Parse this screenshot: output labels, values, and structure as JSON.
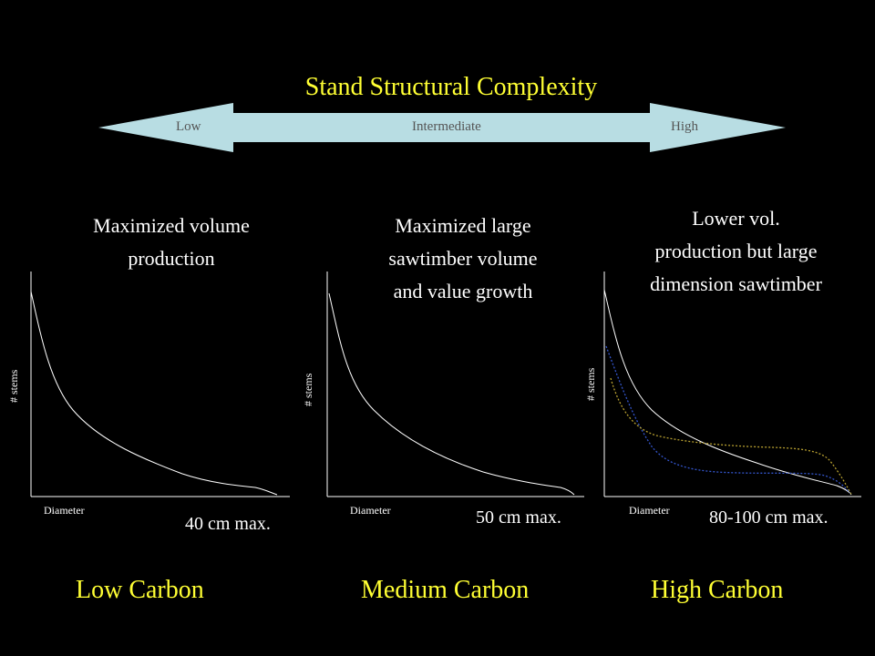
{
  "title": "Stand Structural Complexity",
  "arrow": {
    "low": "Low",
    "intermediate": "Intermediate",
    "high": "High",
    "fill_color": "#b8dde3"
  },
  "panels": [
    {
      "description_lines": [
        "Maximized volume",
        "production"
      ],
      "ylabel": "# stems",
      "xlabel": "Diameter",
      "max_label": "40 cm max.",
      "carbon_label": "Low Carbon"
    },
    {
      "description_lines": [
        "Maximized large",
        "sawtimber volume",
        "and value growth"
      ],
      "ylabel": "# stems",
      "xlabel": "Diameter",
      "max_label": "50 cm max.",
      "carbon_label": "Medium Carbon"
    },
    {
      "description_lines": [
        "Lower vol.",
        "production but large",
        "dimension sawtimber"
      ],
      "ylabel": "# stems",
      "xlabel": "Diameter",
      "max_label": "80-100 cm max.",
      "carbon_label": "High Carbon"
    }
  ],
  "colors": {
    "accent_yellow": "#ffff33",
    "curve_white": "#ffffff",
    "curve_blue": "#3355cc",
    "curve_gold": "#b8a030"
  }
}
